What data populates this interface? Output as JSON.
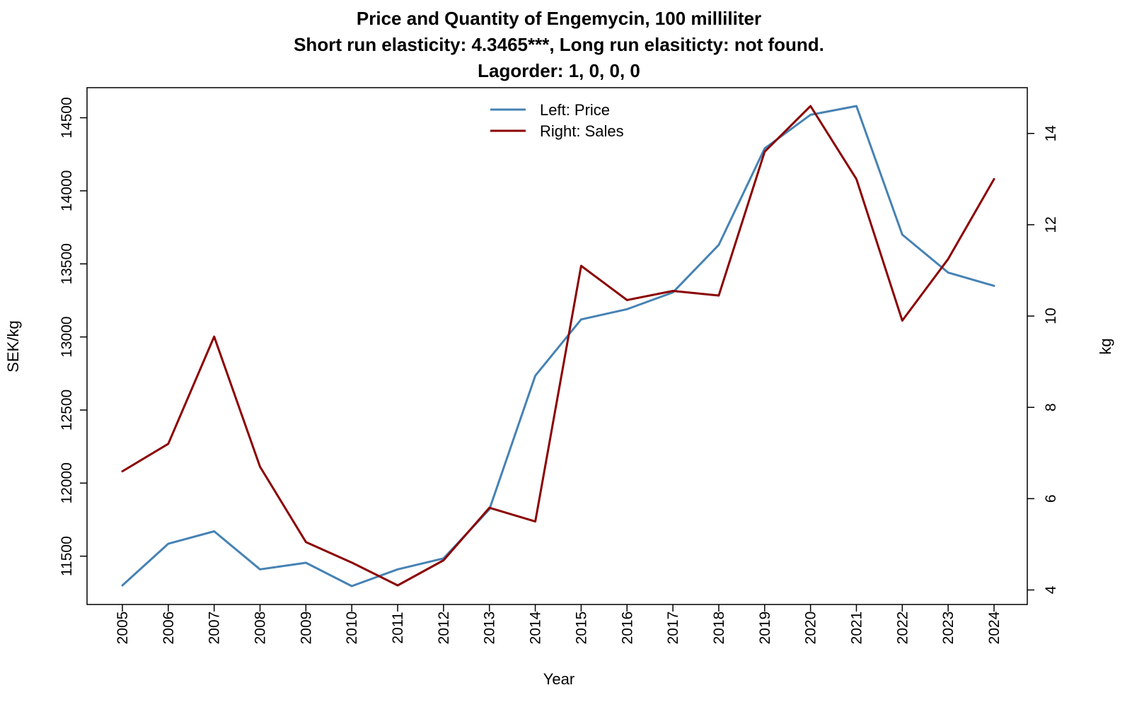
{
  "chart_data": {
    "type": "line",
    "title_lines": [
      "Price and Quantity of Engemycin, 100 milliliter",
      "Short run elasticity: 4.3465***,   Long run elasiticty: not found.",
      "Lagorder: 1, 0, 0, 0"
    ],
    "xlabel": "Year",
    "ylabel_left": "SEK/kg",
    "ylabel_right": "kg",
    "x": [
      2005,
      2006,
      2007,
      2008,
      2009,
      2010,
      2011,
      2012,
      2013,
      2014,
      2015,
      2016,
      2017,
      2018,
      2019,
      2020,
      2021,
      2022,
      2023,
      2024
    ],
    "left_ticks": [
      11500,
      12000,
      12500,
      13000,
      13500,
      14000,
      14500
    ],
    "right_ticks": [
      4,
      6,
      8,
      10,
      12,
      14
    ],
    "left_range": [
      11300,
      14580
    ],
    "right_range": [
      4.1,
      14.6
    ],
    "legend_position": "top-center",
    "series": [
      {
        "name": "Left: Price",
        "axis": "left",
        "color": "#4682B4",
        "values": [
          11300,
          11585,
          11670,
          11410,
          11455,
          11295,
          11410,
          11485,
          11820,
          12735,
          13120,
          13190,
          13305,
          13630,
          14290,
          14520,
          14580,
          13700,
          13440,
          13350
        ]
      },
      {
        "name": "Right: Sales",
        "axis": "right",
        "color": "#8B0000",
        "values": [
          6.6,
          7.2,
          9.55,
          6.7,
          5.05,
          4.6,
          4.1,
          4.65,
          5.8,
          5.5,
          11.1,
          10.35,
          10.55,
          10.45,
          13.6,
          14.6,
          13.0,
          9.9,
          11.25,
          13.0
        ]
      }
    ]
  }
}
